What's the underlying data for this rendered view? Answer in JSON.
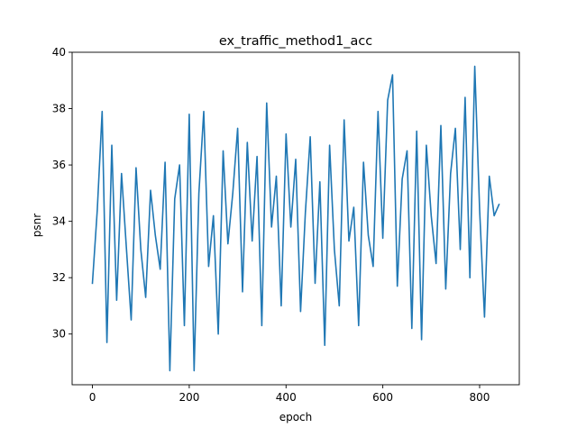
{
  "chart_data": {
    "type": "line",
    "title": "ex_traffic_method1_acc",
    "xlabel": "epoch",
    "ylabel": "psnr",
    "xlim": [
      -42,
      882
    ],
    "ylim": [
      28.2,
      40.0
    ],
    "xticks": [
      0,
      200,
      400,
      600,
      800
    ],
    "yticks": [
      30,
      32,
      34,
      36,
      38,
      40
    ],
    "grid": false,
    "line_color": "#1f77b4",
    "series": [
      {
        "x": [
          0,
          10,
          20,
          30,
          40,
          50,
          60,
          70,
          80,
          90,
          100,
          110,
          120,
          130,
          140,
          150,
          160,
          170,
          180,
          190,
          200,
          210,
          220,
          230,
          240,
          250,
          260,
          270,
          280,
          290,
          300,
          310,
          320,
          330,
          340,
          350,
          360,
          370,
          380,
          390,
          400,
          410,
          420,
          430,
          440,
          450,
          460,
          470,
          480,
          490,
          500,
          510,
          520,
          530,
          540,
          550,
          560,
          570,
          580,
          590,
          600,
          610,
          620,
          630,
          640,
          650,
          660,
          670,
          680,
          690,
          700,
          710,
          720,
          730,
          740,
          750,
          760,
          770,
          780,
          790,
          800,
          810,
          820,
          830,
          840
        ],
        "y": [
          31.8,
          34.4,
          37.9,
          29.7,
          36.7,
          31.2,
          35.7,
          33.1,
          30.5,
          35.9,
          33.0,
          31.3,
          35.1,
          33.5,
          32.3,
          36.1,
          28.7,
          34.8,
          36.0,
          30.3,
          37.8,
          28.7,
          35.0,
          37.9,
          32.4,
          34.2,
          30.0,
          36.5,
          33.2,
          35.0,
          37.3,
          31.5,
          36.8,
          33.3,
          36.3,
          30.3,
          38.2,
          33.8,
          35.6,
          31.0,
          37.1,
          33.8,
          36.2,
          30.8,
          34.3,
          37.0,
          31.8,
          35.4,
          29.6,
          36.7,
          33.0,
          31.0,
          37.6,
          33.3,
          34.5,
          30.3,
          36.1,
          33.5,
          32.4,
          37.9,
          33.4,
          38.3,
          39.2,
          31.7,
          35.5,
          36.5,
          30.2,
          37.2,
          29.8,
          36.7,
          34.2,
          32.5,
          37.4,
          31.6,
          35.7,
          37.3,
          33.0,
          38.4,
          32.0,
          39.5,
          34.4,
          30.6,
          35.6,
          34.2,
          34.6
        ]
      }
    ]
  }
}
